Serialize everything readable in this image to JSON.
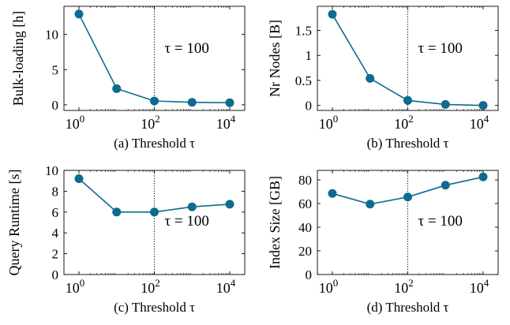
{
  "chart_data": [
    {
      "id": "a",
      "type": "line",
      "caption": "(a) Threshold τ",
      "ylabel": "Bulk-loading [h]",
      "annotation": "τ = 100",
      "reference_line_x": 100,
      "xscale": "log",
      "x": [
        1,
        10,
        100,
        1000,
        10000
      ],
      "series": [
        {
          "values": [
            12.9,
            2.3,
            0.55,
            0.35,
            0.3
          ]
        }
      ],
      "xticks": [
        {
          "value": 1,
          "base": "10",
          "exp": "0"
        },
        {
          "value": 100,
          "base": "10",
          "exp": "2"
        },
        {
          "value": 10000,
          "base": "10",
          "exp": "4"
        }
      ],
      "yticks": [
        0,
        5,
        10
      ],
      "yticklabels": [
        "0",
        "5",
        "10"
      ],
      "ylim": [
        -0.8,
        14
      ],
      "color": "#0f6a8f"
    },
    {
      "id": "b",
      "type": "line",
      "caption": "(b) Threshold τ",
      "ylabel": "Nr Nodes [B]",
      "annotation": "τ = 100",
      "reference_line_x": 100,
      "xscale": "log",
      "x": [
        1,
        10,
        100,
        1000,
        10000
      ],
      "series": [
        {
          "values": [
            1.82,
            0.54,
            0.1,
            0.02,
            0.0
          ]
        }
      ],
      "xticks": [
        {
          "value": 1,
          "base": "10",
          "exp": "0"
        },
        {
          "value": 100,
          "base": "10",
          "exp": "2"
        },
        {
          "value": 10000,
          "base": "10",
          "exp": "4"
        }
      ],
      "yticks": [
        0,
        0.5,
        1,
        1.5
      ],
      "yticklabels": [
        "0",
        "0.5",
        "1",
        "1.5"
      ],
      "ylim": [
        -0.1,
        1.98
      ],
      "color": "#0f6a8f"
    },
    {
      "id": "c",
      "type": "line",
      "caption": "(c) Threshold τ",
      "ylabel": "Query Runtime [s]",
      "annotation": "τ = 100",
      "reference_line_x": 100,
      "xscale": "log",
      "x": [
        1,
        10,
        100,
        1000,
        10000
      ],
      "series": [
        {
          "values": [
            9.2,
            6.0,
            6.0,
            6.5,
            6.75
          ]
        }
      ],
      "xticks": [
        {
          "value": 1,
          "base": "10",
          "exp": "0"
        },
        {
          "value": 100,
          "base": "10",
          "exp": "2"
        },
        {
          "value": 10000,
          "base": "10",
          "exp": "4"
        }
      ],
      "yticks": [
        0,
        2,
        4,
        6,
        8,
        10
      ],
      "yticklabels": [
        "0",
        "2",
        "4",
        "6",
        "8",
        "10"
      ],
      "ylim": [
        0,
        10
      ],
      "color": "#0f6a8f"
    },
    {
      "id": "d",
      "type": "line",
      "caption": "(d) Threshold τ",
      "ylabel": "Index Size [GB]",
      "annotation": "τ = 100",
      "reference_line_x": 100,
      "xscale": "log",
      "x": [
        1,
        10,
        100,
        1000,
        10000
      ],
      "series": [
        {
          "values": [
            68.5,
            59.5,
            65.5,
            75.5,
            82.5
          ]
        }
      ],
      "xticks": [
        {
          "value": 1,
          "base": "10",
          "exp": "0"
        },
        {
          "value": 100,
          "base": "10",
          "exp": "2"
        },
        {
          "value": 10000,
          "base": "10",
          "exp": "4"
        }
      ],
      "yticks": [
        0,
        20,
        40,
        60,
        80
      ],
      "yticklabels": [
        "0",
        "20",
        "40",
        "60",
        "80"
      ],
      "ylim": [
        0,
        88
      ],
      "color": "#0f6a8f"
    }
  ]
}
